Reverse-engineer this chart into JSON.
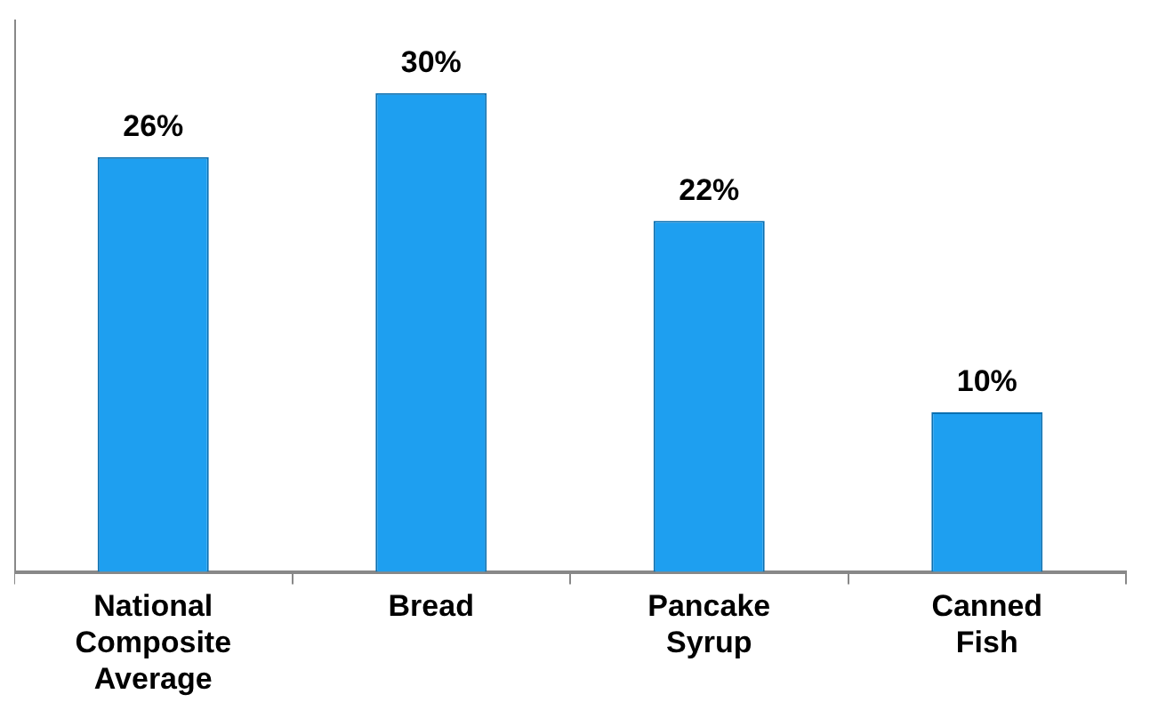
{
  "chart_data": {
    "type": "bar",
    "categories": [
      "National Composite Average",
      "Bread",
      "Pancake Syrup",
      "Canned Fish"
    ],
    "values": [
      26,
      30,
      22,
      10
    ],
    "value_labels": [
      "26%",
      "30%",
      "22%",
      "10%"
    ],
    "color": "#1e9ff0",
    "grid": false,
    "legend": false
  }
}
